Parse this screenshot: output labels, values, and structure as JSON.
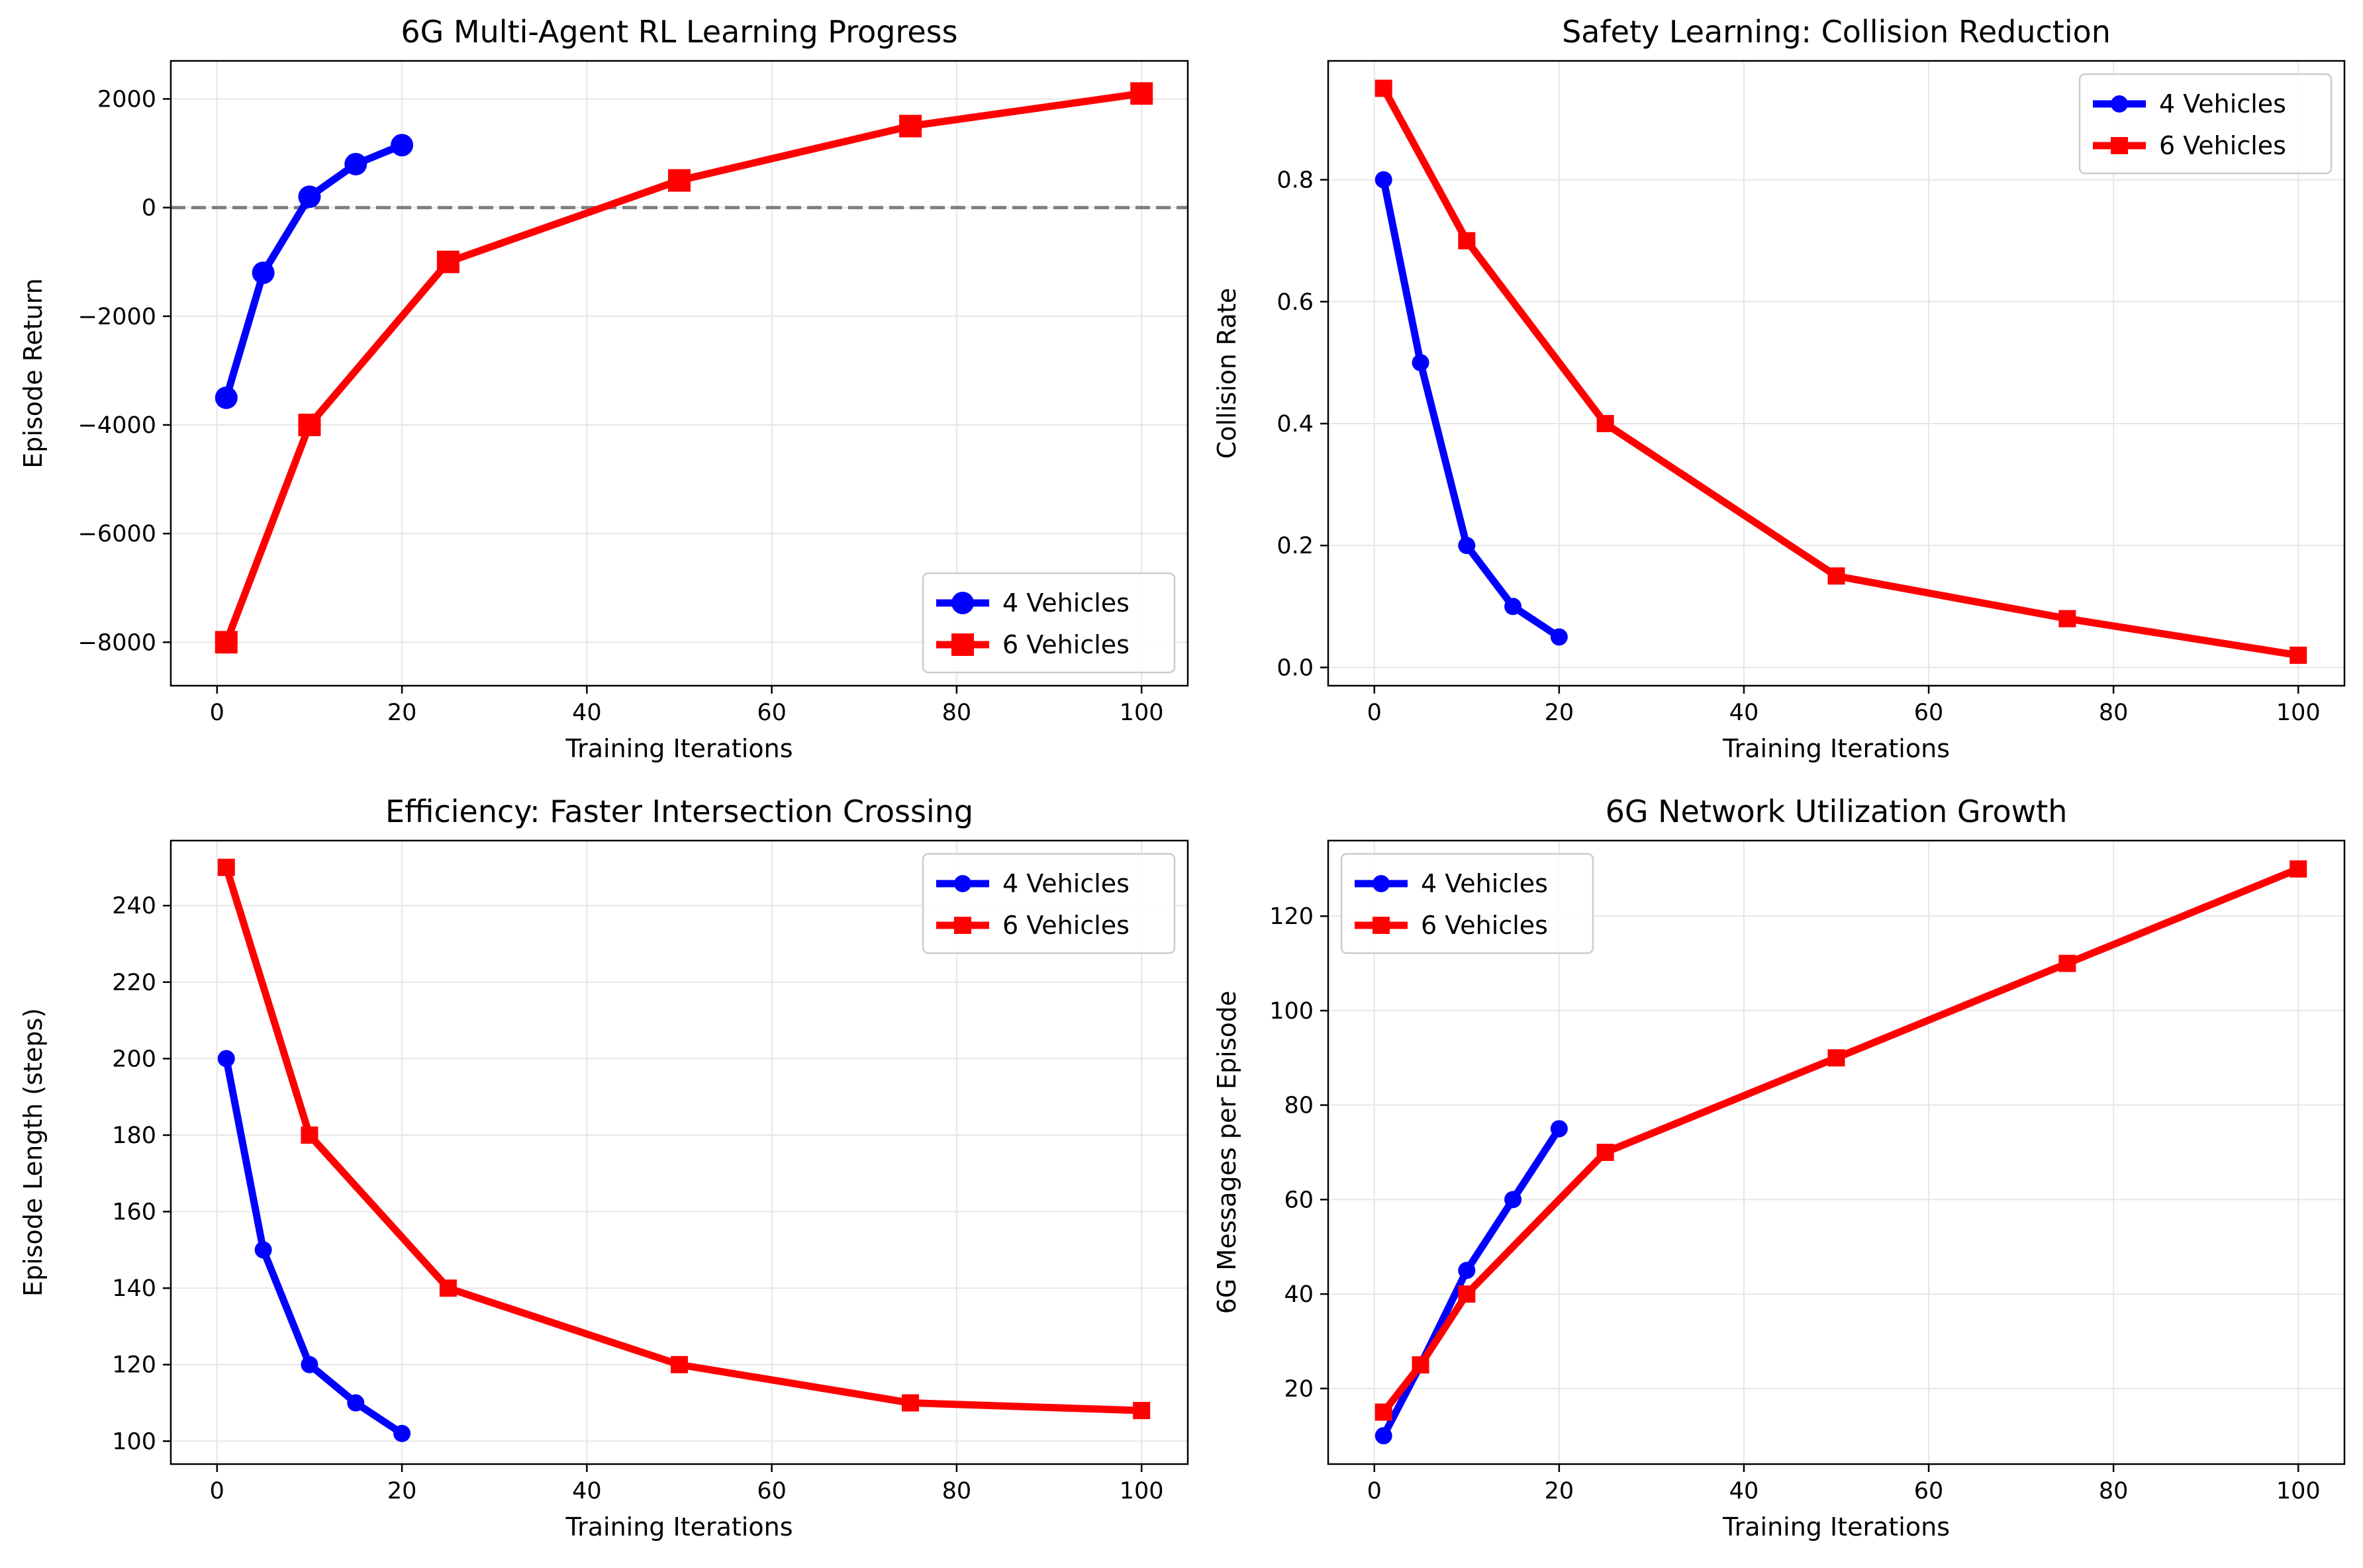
{
  "colors": {
    "series_4": "#0000ff",
    "series_6": "#ff0000",
    "grid": "#e6e6e6",
    "zero_line": "#808080"
  },
  "chart_data": [
    {
      "type": "line",
      "title": "6G Multi-Agent RL Learning Progress",
      "xlabel": "Training Iterations",
      "ylabel": "Episode Return",
      "xlim": [
        -5,
        105
      ],
      "ylim": [
        -8800,
        2700
      ],
      "xticks": [
        0,
        20,
        40,
        60,
        80,
        100
      ],
      "yticks": [
        -8000,
        -6000,
        -4000,
        -2000,
        0,
        2000
      ],
      "ytick_labels": [
        "−8000",
        "−6000",
        "−4000",
        "−2000",
        "0",
        "2000"
      ],
      "grid": true,
      "legend": "lower-right",
      "reference_line": 0,
      "series": [
        {
          "name": "4 Vehicles",
          "marker": "circle",
          "x": [
            1,
            5,
            10,
            15,
            20
          ],
          "y": [
            -3500,
            -1200,
            200,
            800,
            1150
          ]
        },
        {
          "name": "6 Vehicles",
          "marker": "square",
          "x": [
            1,
            10,
            25,
            50,
            75,
            100
          ],
          "y": [
            -8000,
            -4000,
            -1000,
            500,
            1500,
            2100
          ]
        }
      ]
    },
    {
      "type": "line",
      "title": "Safety Learning: Collision Reduction",
      "xlabel": "Training Iterations",
      "ylabel": "Collision Rate",
      "xlim": [
        -5,
        105
      ],
      "ylim": [
        -0.03,
        0.995
      ],
      "xticks": [
        0,
        20,
        40,
        60,
        80,
        100
      ],
      "yticks": [
        0.0,
        0.2,
        0.4,
        0.6,
        0.8
      ],
      "ytick_labels": [
        "0.0",
        "0.2",
        "0.4",
        "0.6",
        "0.8"
      ],
      "grid": true,
      "legend": "upper-right",
      "series": [
        {
          "name": "4 Vehicles",
          "marker": "circle",
          "x": [
            1,
            5,
            10,
            15,
            20
          ],
          "y": [
            0.8,
            0.5,
            0.2,
            0.1,
            0.05
          ]
        },
        {
          "name": "6 Vehicles",
          "marker": "square",
          "x": [
            1,
            10,
            25,
            50,
            75,
            100
          ],
          "y": [
            0.95,
            0.7,
            0.4,
            0.15,
            0.08,
            0.02
          ]
        }
      ]
    },
    {
      "type": "line",
      "title": "Efficiency: Faster Intersection Crossing",
      "xlabel": "Training Iterations",
      "ylabel": "Episode Length (steps)",
      "xlim": [
        -5,
        105
      ],
      "ylim": [
        94,
        257
      ],
      "xticks": [
        0,
        20,
        40,
        60,
        80,
        100
      ],
      "yticks": [
        100,
        120,
        140,
        160,
        180,
        200,
        220,
        240
      ],
      "ytick_labels": [
        "100",
        "120",
        "140",
        "160",
        "180",
        "200",
        "220",
        "240"
      ],
      "grid": true,
      "legend": "upper-right",
      "series": [
        {
          "name": "4 Vehicles",
          "marker": "circle",
          "x": [
            1,
            5,
            10,
            15,
            20
          ],
          "y": [
            200,
            150,
            120,
            110,
            102
          ]
        },
        {
          "name": "6 Vehicles",
          "marker": "square",
          "x": [
            1,
            10,
            25,
            50,
            75,
            100
          ],
          "y": [
            250,
            180,
            140,
            120,
            110,
            108
          ]
        }
      ]
    },
    {
      "type": "line",
      "title": "6G Network Utilization Growth",
      "xlabel": "Training Iterations",
      "ylabel": "6G Messages per Episode",
      "xlim": [
        -5,
        105
      ],
      "ylim": [
        4,
        136
      ],
      "xticks": [
        0,
        20,
        40,
        60,
        80,
        100
      ],
      "yticks": [
        20,
        40,
        60,
        80,
        100,
        120
      ],
      "ytick_labels": [
        "20",
        "40",
        "60",
        "80",
        "100",
        "120"
      ],
      "grid": true,
      "legend": "upper-left",
      "series": [
        {
          "name": "4 Vehicles",
          "marker": "circle",
          "x": [
            1,
            5,
            10,
            15,
            20
          ],
          "y": [
            10,
            25,
            45,
            60,
            75
          ]
        },
        {
          "name": "6 Vehicles",
          "marker": "square",
          "x": [
            1,
            5,
            10,
            25,
            50,
            75,
            100
          ],
          "y": [
            15,
            25,
            40,
            70,
            90,
            110,
            130
          ]
        }
      ]
    }
  ]
}
